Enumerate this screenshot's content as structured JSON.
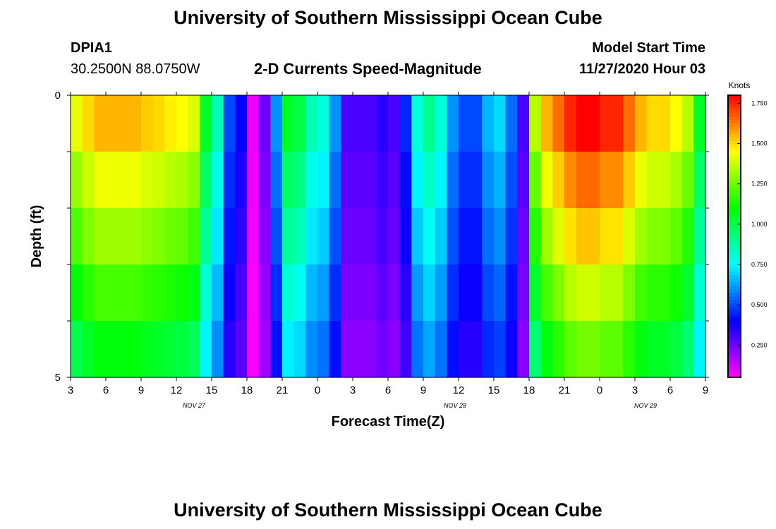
{
  "header": {
    "title": "University of Southern Mississippi Ocean Cube",
    "station_id": "DPIA1",
    "coordinates": "30.2500N 88.0750W",
    "model_start_label": "Model Start Time",
    "model_start_value": "11/27/2020 Hour 03",
    "footer_title": "University of Southern Mississippi Ocean Cube"
  },
  "chart_data": {
    "type": "heatmap",
    "title": "2-D Currents Speed-Magnitude",
    "xlabel": "Forecast Time(Z)",
    "ylabel": "Depth (ft)",
    "x_ticks": [
      "3",
      "6",
      "9",
      "12",
      "15",
      "18",
      "21",
      "0",
      "3",
      "6",
      "9",
      "12",
      "15",
      "18",
      "21",
      "0",
      "3",
      "6",
      "9"
    ],
    "date_labels": [
      {
        "label": "NOV 27",
        "at_tick": 3.5
      },
      {
        "label": "NOV 28",
        "at_tick": 10.9
      },
      {
        "label": "NOV 29",
        "at_tick": 16.3
      }
    ],
    "y_ticks": [
      "0",
      "5"
    ],
    "ylim": [
      0,
      5
    ],
    "colorbar": {
      "unit": "Knots",
      "tick_labels": [
        "1.750",
        "1.500",
        "1.250",
        "1.000",
        "0.750",
        "0.500",
        "0.250"
      ],
      "tick_values": [
        1.75,
        1.5,
        1.25,
        1.0,
        0.75,
        0.5,
        0.25
      ],
      "range": [
        0.05,
        1.8
      ]
    },
    "hours": 54,
    "layers": 5,
    "surface_speeds": [
      1.42,
      1.5,
      1.55,
      1.55,
      1.55,
      1.55,
      1.52,
      1.5,
      1.47,
      1.45,
      1.4,
      1.05,
      0.85,
      0.5,
      0.4,
      0.08,
      0.25,
      0.6,
      1.05,
      1.0,
      0.85,
      0.8,
      0.6,
      0.3,
      0.3,
      0.3,
      0.35,
      0.3,
      0.45,
      0.8,
      0.9,
      0.8,
      0.6,
      0.5,
      0.5,
      0.65,
      0.7,
      0.55,
      0.3,
      1.35,
      1.55,
      1.65,
      1.75,
      1.8,
      1.8,
      1.75,
      1.75,
      1.65,
      1.55,
      1.5,
      1.5,
      1.45,
      1.35,
      1.05
    ],
    "depth_factors": [
      1.0,
      0.92,
      0.85,
      0.77,
      0.7
    ]
  }
}
